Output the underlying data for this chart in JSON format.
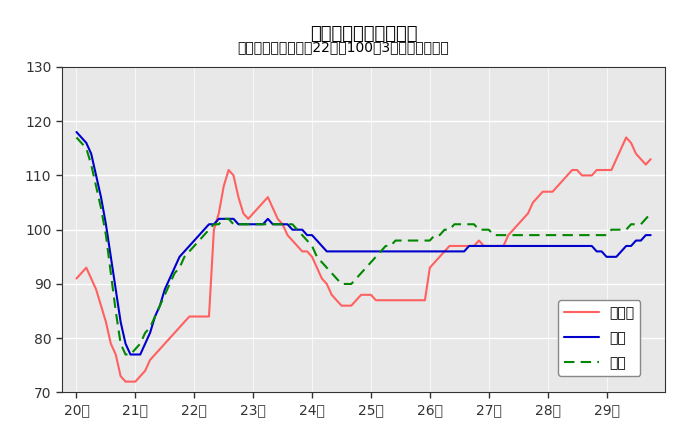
{
  "title": "鉱工業生産指数の推移",
  "subtitle": "（季節調整済、平成22年＝100、3ヶ月移動平均）",
  "xlabel_ticks": [
    "20年",
    "21年",
    "22年",
    "23年",
    "24年",
    "25年",
    "26年",
    "27年",
    "28年",
    "29年"
  ],
  "ylim": [
    70,
    130
  ],
  "yticks": [
    70,
    80,
    90,
    100,
    110,
    120,
    130
  ],
  "fig_bg_color": "#ffffff",
  "plot_bg_color": "#e8e8e8",
  "legend_labels": [
    "鳥取県",
    "中国",
    "全国"
  ],
  "tottori_color": "#ff6060",
  "chugoku_color": "#0000cc",
  "zenkoku_color": "#008800",
  "tottori": [
    91,
    92,
    93,
    91,
    89,
    86,
    83,
    79,
    77,
    73,
    72,
    72,
    72,
    73,
    74,
    76,
    77,
    78,
    79,
    80,
    81,
    82,
    83,
    84,
    84,
    84,
    84,
    84,
    100,
    103,
    108,
    111,
    110,
    106,
    103,
    102,
    103,
    104,
    105,
    106,
    104,
    102,
    101,
    99,
    98,
    97,
    96,
    96,
    95,
    93,
    91,
    90,
    88,
    87,
    86,
    86,
    86,
    87,
    88,
    88,
    88,
    87,
    87,
    87,
    87,
    87,
    87,
    87,
    87,
    87,
    87,
    87,
    93,
    94,
    95,
    96,
    97,
    97,
    97,
    97,
    97,
    97,
    98,
    97,
    97,
    97,
    97,
    97,
    99,
    100,
    101,
    102,
    103,
    105,
    106,
    107,
    107,
    107,
    108,
    109,
    110,
    111,
    111,
    110,
    110,
    110,
    111,
    111,
    111,
    111,
    113,
    115,
    117,
    116,
    114,
    113,
    112,
    113
  ],
  "chugoku": [
    118,
    117,
    116,
    114,
    110,
    106,
    101,
    95,
    89,
    83,
    79,
    77,
    77,
    77,
    79,
    81,
    84,
    86,
    89,
    91,
    93,
    95,
    96,
    97,
    98,
    99,
    100,
    101,
    101,
    102,
    102,
    102,
    102,
    101,
    101,
    101,
    101,
    101,
    101,
    102,
    101,
    101,
    101,
    101,
    100,
    100,
    100,
    99,
    99,
    98,
    97,
    96,
    96,
    96,
    96,
    96,
    96,
    96,
    96,
    96,
    96,
    96,
    96,
    96,
    96,
    96,
    96,
    96,
    96,
    96,
    96,
    96,
    96,
    96,
    96,
    96,
    96,
    96,
    96,
    96,
    97,
    97,
    97,
    97,
    97,
    97,
    97,
    97,
    97,
    97,
    97,
    97,
    97,
    97,
    97,
    97,
    97,
    97,
    97,
    97,
    97,
    97,
    97,
    97,
    97,
    97,
    96,
    96,
    95,
    95,
    95,
    96,
    97,
    97,
    98,
    98,
    99,
    99
  ],
  "zenkoku": [
    117,
    116,
    115,
    112,
    108,
    104,
    99,
    92,
    85,
    79,
    77,
    77,
    78,
    79,
    81,
    82,
    84,
    86,
    88,
    90,
    92,
    93,
    95,
    96,
    97,
    98,
    99,
    100,
    101,
    101,
    102,
    102,
    101,
    101,
    101,
    101,
    101,
    101,
    101,
    101,
    101,
    101,
    101,
    101,
    101,
    100,
    99,
    98,
    97,
    95,
    94,
    93,
    92,
    91,
    90,
    90,
    90,
    91,
    92,
    93,
    94,
    95,
    96,
    97,
    97,
    98,
    98,
    98,
    98,
    98,
    98,
    98,
    98,
    99,
    99,
    100,
    100,
    101,
    101,
    101,
    101,
    101,
    100,
    100,
    100,
    99,
    99,
    99,
    99,
    99,
    99,
    99,
    99,
    99,
    99,
    99,
    99,
    99,
    99,
    99,
    99,
    99,
    99,
    99,
    99,
    99,
    99,
    99,
    99,
    100,
    100,
    100,
    100,
    101,
    101,
    101,
    102,
    103
  ]
}
